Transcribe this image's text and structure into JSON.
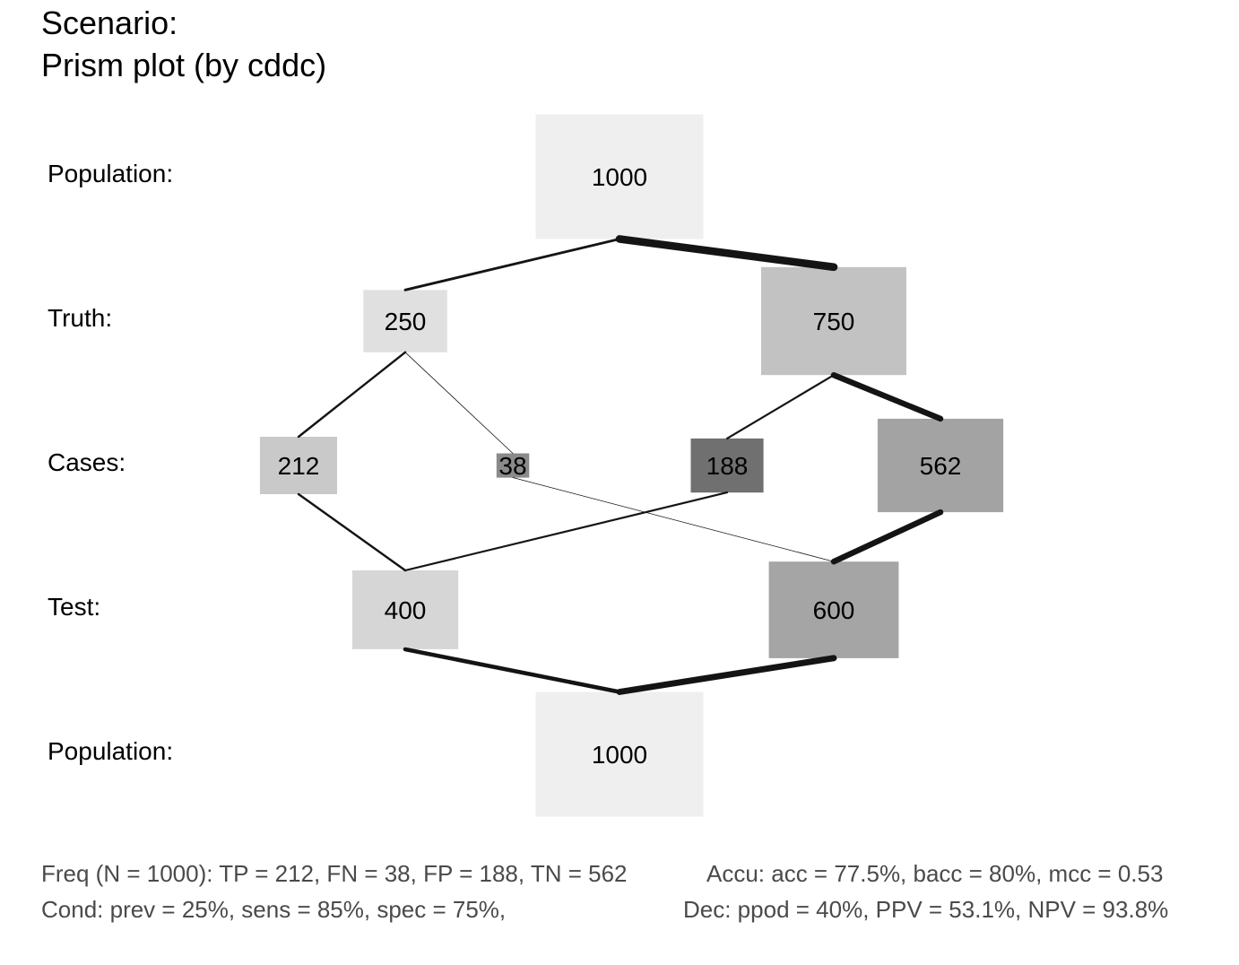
{
  "title": {
    "line1": "Scenario:",
    "line2": "Prism plot (by cddc)"
  },
  "row_labels": {
    "population_top": "Population:",
    "truth": "Truth:",
    "cases": "Cases:",
    "test": "Test:",
    "population_bottom": "Population:"
  },
  "nodes": {
    "population_top": {
      "label": "1000",
      "value": 1000,
      "color": "#efefef"
    },
    "cond_true": {
      "label": "250",
      "value": 250,
      "color": "#e0e0e0"
    },
    "cond_false": {
      "label": "750",
      "value": 750,
      "color": "#c2c2c2"
    },
    "tp": {
      "label": "212",
      "value": 212,
      "color": "#c9c9c9"
    },
    "fn": {
      "label": "38",
      "value": 38,
      "color": "#8a8a8a"
    },
    "fp": {
      "label": "188",
      "value": 188,
      "color": "#707070"
    },
    "tn": {
      "label": "562",
      "value": 562,
      "color": "#a3a3a3"
    },
    "dec_pos": {
      "label": "400",
      "value": 400,
      "color": "#d6d6d6"
    },
    "dec_neg": {
      "label": "600",
      "value": 600,
      "color": "#a5a5a5"
    },
    "population_bottom": {
      "label": "1000",
      "value": 1000,
      "color": "#efefef"
    }
  },
  "edges": [
    {
      "from": "population_top",
      "to": "cond_true",
      "value": 250
    },
    {
      "from": "population_top",
      "to": "cond_false",
      "value": 750
    },
    {
      "from": "cond_true",
      "to": "tp",
      "value": 212
    },
    {
      "from": "cond_true",
      "to": "fn",
      "value": 38
    },
    {
      "from": "cond_false",
      "to": "fp",
      "value": 188
    },
    {
      "from": "cond_false",
      "to": "tn",
      "value": 562
    },
    {
      "from": "tp",
      "to": "dec_pos",
      "value": 212
    },
    {
      "from": "fp",
      "to": "dec_pos",
      "value": 188
    },
    {
      "from": "fn",
      "to": "dec_neg",
      "value": 38
    },
    {
      "from": "tn",
      "to": "dec_neg",
      "value": 562
    },
    {
      "from": "dec_pos",
      "to": "population_bottom",
      "value": 400
    },
    {
      "from": "dec_neg",
      "to": "population_bottom",
      "value": 600
    }
  ],
  "footer": {
    "freq": "Freq (N = 1000):  TP = 212, FN = 38, FP = 188, TN = 562",
    "accu": "Accu:  acc = 77.5%, bacc = 80%, mcc = 0.53",
    "cond": "Cond:  prev = 25%, sens = 85%, spec = 75%,",
    "dec": "Dec:  ppod = 40%, PPV = 53.1%, NPV = 93.8%"
  }
}
